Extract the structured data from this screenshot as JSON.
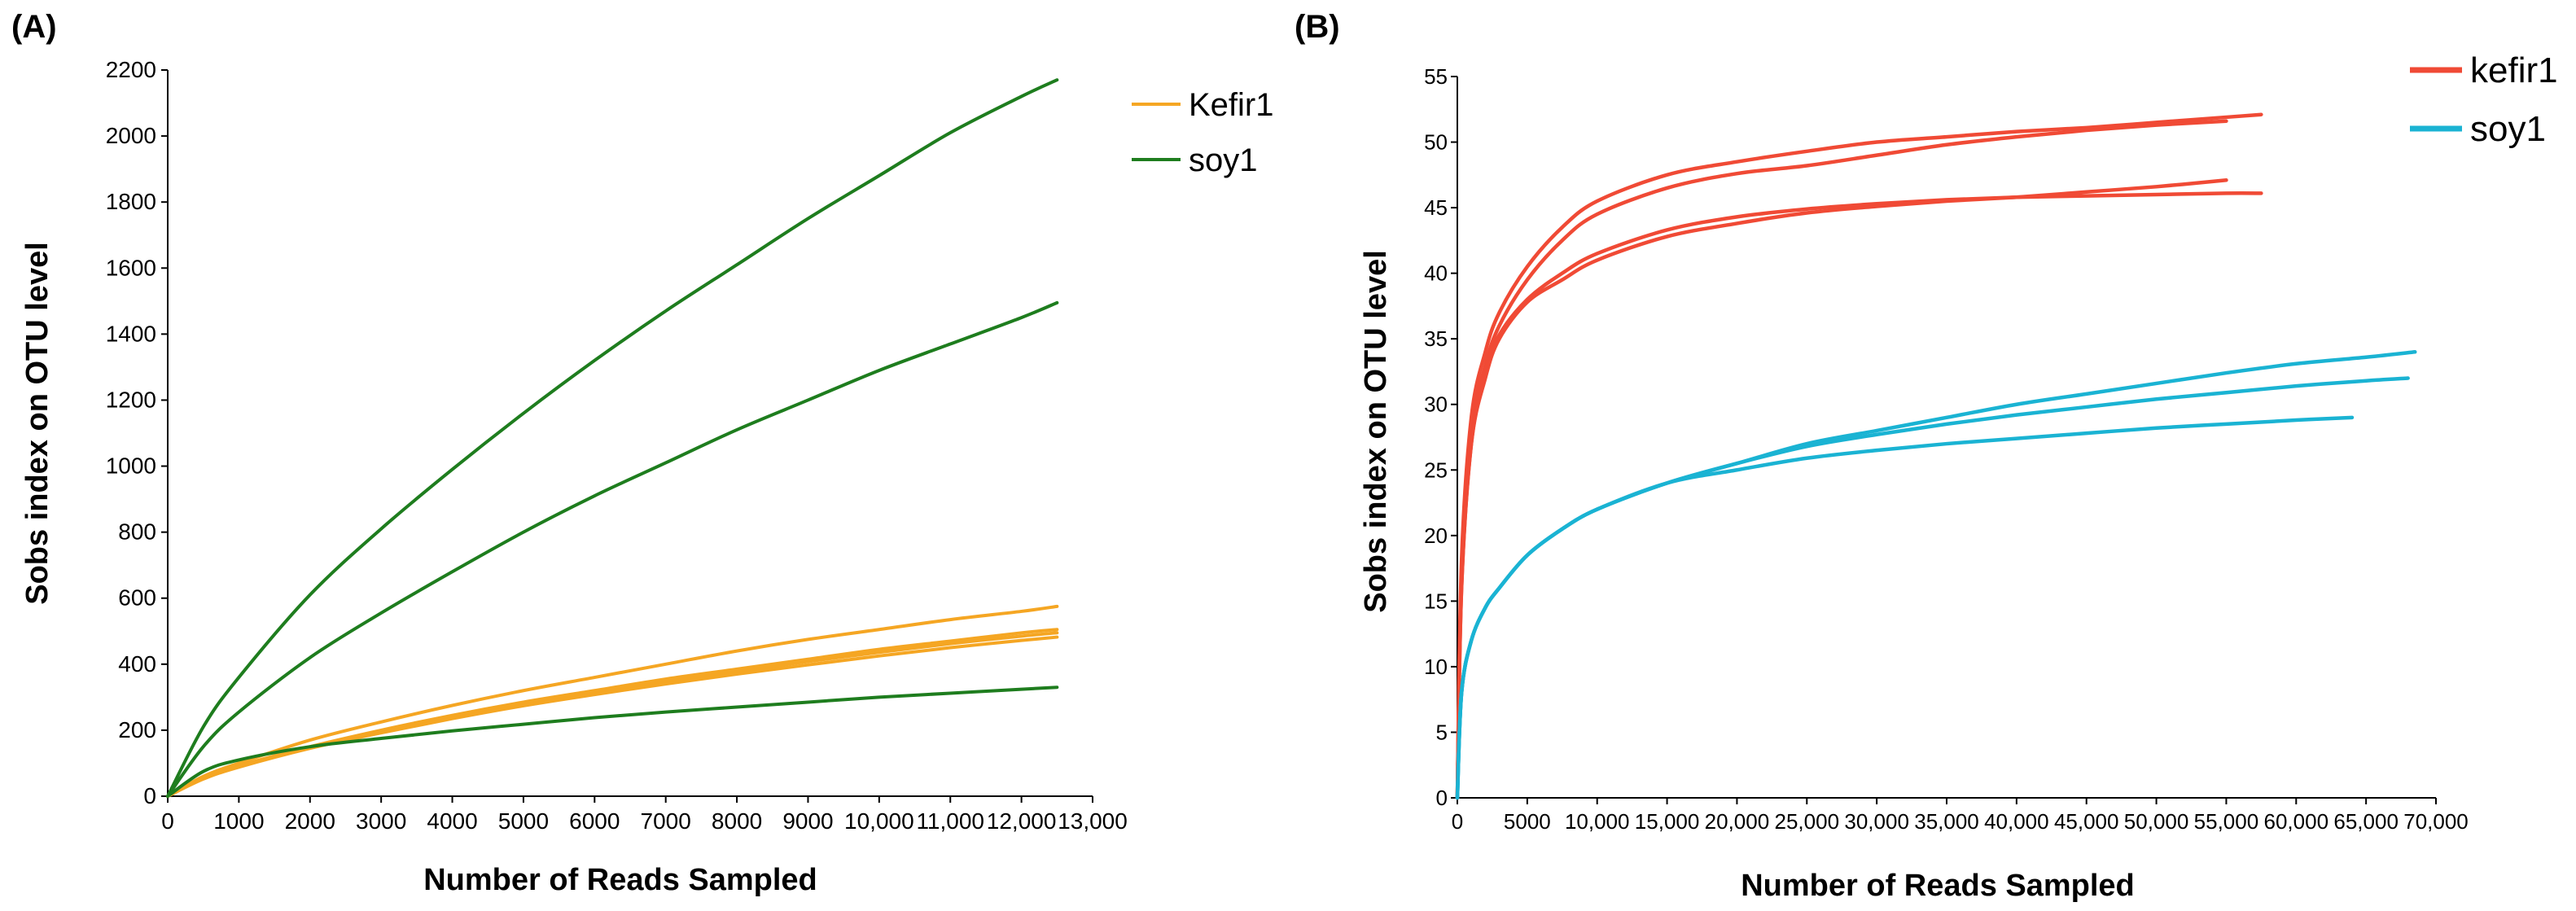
{
  "chart_data": [
    {
      "panel": "(A)",
      "type": "line",
      "xlabel": "Number of Reads Sampled",
      "ylabel": "Sobs index on OTU level",
      "xlim": [
        0,
        13000
      ],
      "ylim": [
        0,
        2200
      ],
      "xticks": [
        0,
        1000,
        2000,
        3000,
        4000,
        5000,
        6000,
        7000,
        8000,
        9000,
        10000,
        11000,
        12000,
        13000
      ],
      "xtick_labels": [
        "0",
        "1000",
        "2000",
        "3000",
        "4000",
        "5000",
        "6000",
        "7000",
        "8000",
        "9000",
        "10,000",
        "11,000",
        "12,000",
        "13,000"
      ],
      "yticks": [
        0,
        200,
        400,
        600,
        800,
        1000,
        1200,
        1400,
        1600,
        1800,
        2000,
        2200
      ],
      "ytick_labels": [
        "0",
        "200",
        "400",
        "600",
        "800",
        "1000",
        "1200",
        "1400",
        "1600",
        "1800",
        "2000",
        "2200"
      ],
      "legend": [
        {
          "label": "Kefir1",
          "color": "#f5a623"
        },
        {
          "label": "soy1",
          "color": "#1e7d1e"
        }
      ],
      "series": [
        {
          "name": "Kefir1",
          "color": "#f5a623",
          "x": [
            0,
            500,
            1000,
            2000,
            3000,
            4000,
            5000,
            6000,
            7000,
            8000,
            9000,
            10000,
            11000,
            12000,
            12500
          ],
          "y": [
            0,
            60,
            100,
            170,
            225,
            275,
            320,
            360,
            400,
            440,
            475,
            505,
            535,
            560,
            575
          ]
        },
        {
          "name": "Kefir1",
          "color": "#f5a623",
          "x": [
            0,
            500,
            1000,
            2000,
            3000,
            4000,
            5000,
            6000,
            7000,
            8000,
            9000,
            10000,
            11000,
            12000,
            12500
          ],
          "y": [
            0,
            55,
            92,
            150,
            200,
            245,
            285,
            320,
            355,
            385,
            415,
            445,
            470,
            495,
            505
          ]
        },
        {
          "name": "Kefir1",
          "color": "#f5a623",
          "x": [
            0,
            500,
            1000,
            2000,
            3000,
            4000,
            5000,
            6000,
            7000,
            8000,
            9000,
            10000,
            11000,
            12000,
            12500
          ],
          "y": [
            0,
            54,
            90,
            148,
            196,
            240,
            280,
            315,
            348,
            378,
            408,
            436,
            462,
            485,
            495
          ]
        },
        {
          "name": "Kefir1",
          "color": "#f5a623",
          "x": [
            0,
            500,
            1000,
            2000,
            3000,
            4000,
            5000,
            6000,
            7000,
            8000,
            9000,
            10000,
            11000,
            12000,
            12500
          ],
          "y": [
            0,
            52,
            88,
            145,
            192,
            235,
            274,
            308,
            340,
            370,
            398,
            425,
            450,
            472,
            482
          ]
        },
        {
          "name": "soy1",
          "color": "#1e7d1e",
          "x": [
            0,
            500,
            1000,
            2000,
            3000,
            4000,
            5000,
            6000,
            7000,
            8000,
            9000,
            10000,
            11000,
            12000,
            12500
          ],
          "y": [
            0,
            210,
            360,
            610,
            810,
            990,
            1160,
            1320,
            1470,
            1610,
            1750,
            1880,
            2010,
            2120,
            2170
          ]
        },
        {
          "name": "soy1",
          "color": "#1e7d1e",
          "x": [
            0,
            500,
            1000,
            2000,
            3000,
            4000,
            5000,
            6000,
            7000,
            8000,
            9000,
            10000,
            11000,
            12000,
            12500
          ],
          "y": [
            0,
            150,
            255,
            420,
            555,
            680,
            800,
            910,
            1010,
            1110,
            1200,
            1290,
            1370,
            1450,
            1495
          ]
        },
        {
          "name": "soy1",
          "color": "#1e7d1e",
          "x": [
            0,
            500,
            1000,
            2000,
            3000,
            4000,
            5000,
            6000,
            7000,
            8000,
            9000,
            10000,
            11000,
            12000,
            12500
          ],
          "y": [
            0,
            75,
            110,
            150,
            175,
            198,
            218,
            238,
            255,
            270,
            285,
            300,
            312,
            324,
            330
          ]
        }
      ]
    },
    {
      "panel": "(B)",
      "type": "line",
      "xlabel": "Number of Reads Sampled",
      "ylabel": "Sobs index on OTU level",
      "xlim": [
        0,
        70000
      ],
      "ylim": [
        0,
        55
      ],
      "xticks": [
        0,
        5000,
        10000,
        15000,
        20000,
        25000,
        30000,
        35000,
        40000,
        45000,
        50000,
        55000,
        60000,
        65000,
        70000
      ],
      "xtick_labels": [
        "0",
        "5000",
        "10,000",
        "15,000",
        "20,000",
        "25,000",
        "30,000",
        "35,000",
        "40,000",
        "45,000",
        "50,000",
        "55,000",
        "60,000",
        "65,000",
        "70,000"
      ],
      "yticks": [
        0,
        5,
        10,
        15,
        20,
        25,
        30,
        35,
        40,
        45,
        50,
        55
      ],
      "ytick_labels": [
        "0",
        "5",
        "10",
        "15",
        "20",
        "25",
        "30",
        "35",
        "40",
        "45",
        "50",
        "55"
      ],
      "legend": [
        {
          "label": "kefir1",
          "color": "#f04a35"
        },
        {
          "label": "soy1",
          "color": "#1ab3d3"
        }
      ],
      "series": [
        {
          "name": "kefir1",
          "color": "#f04a35",
          "x": [
            0,
            300,
            1000,
            2000,
            3000,
            5000,
            7500,
            10000,
            15000,
            20000,
            25000,
            30000,
            35000,
            40000,
            45000,
            50000,
            55000,
            57500
          ],
          "y": [
            0,
            18,
            29,
            34,
            37,
            40.5,
            43.5,
            45.5,
            47.5,
            48.5,
            49.3,
            50,
            50.4,
            50.8,
            51.1,
            51.5,
            51.9,
            52.1
          ]
        },
        {
          "name": "kefir1",
          "color": "#f04a35",
          "x": [
            0,
            300,
            1000,
            2000,
            3000,
            5000,
            7500,
            10000,
            15000,
            20000,
            25000,
            30000,
            35000,
            40000,
            45000,
            50000,
            55000
          ],
          "y": [
            0,
            17,
            28,
            33,
            36,
            39.5,
            42.5,
            44.5,
            46.5,
            47.6,
            48.2,
            49,
            49.8,
            50.4,
            50.9,
            51.3,
            51.6
          ]
        },
        {
          "name": "kefir1",
          "color": "#f04a35",
          "x": [
            0,
            300,
            1000,
            2000,
            3000,
            5000,
            7500,
            10000,
            15000,
            20000,
            25000,
            30000,
            35000,
            40000,
            45000,
            50000,
            55000
          ],
          "y": [
            0,
            16,
            27,
            32,
            35,
            37.8,
            39.5,
            41,
            42.8,
            43.8,
            44.6,
            45.1,
            45.5,
            45.8,
            46.2,
            46.6,
            47.1
          ]
        },
        {
          "name": "kefir1",
          "color": "#f04a35",
          "x": [
            0,
            300,
            1000,
            2000,
            3000,
            5000,
            7500,
            10000,
            15000,
            20000,
            25000,
            30000,
            35000,
            40000,
            45000,
            50000,
            55000,
            57500
          ],
          "y": [
            0,
            16,
            27,
            32.5,
            35.3,
            38,
            40,
            41.5,
            43.3,
            44.3,
            44.9,
            45.3,
            45.6,
            45.8,
            45.9,
            46,
            46.1,
            46.1
          ]
        },
        {
          "name": "soy1",
          "color": "#1ab3d3",
          "x": [
            0,
            300,
            1000,
            2000,
            3000,
            5000,
            7500,
            10000,
            15000,
            20000,
            25000,
            30000,
            35000,
            40000,
            45000,
            50000,
            55000,
            60000,
            65000,
            68500
          ],
          "y": [
            0,
            8,
            12,
            14.5,
            16,
            18.5,
            20.5,
            22,
            24,
            25.5,
            27,
            28,
            29,
            30,
            30.8,
            31.6,
            32.4,
            33.1,
            33.6,
            34
          ]
        },
        {
          "name": "soy1",
          "color": "#1ab3d3",
          "x": [
            0,
            300,
            1000,
            2000,
            3000,
            5000,
            7500,
            10000,
            15000,
            20000,
            25000,
            30000,
            35000,
            40000,
            45000,
            50000,
            55000,
            60000,
            65000,
            68000
          ],
          "y": [
            0,
            8,
            12,
            14.5,
            16,
            18.5,
            20.5,
            22,
            24,
            25.5,
            26.8,
            27.7,
            28.5,
            29.2,
            29.8,
            30.4,
            30.9,
            31.4,
            31.8,
            32
          ]
        },
        {
          "name": "soy1",
          "color": "#1ab3d3",
          "x": [
            0,
            300,
            1000,
            2000,
            3000,
            5000,
            7500,
            10000,
            15000,
            20000,
            25000,
            30000,
            35000,
            40000,
            45000,
            50000,
            55000,
            60000,
            64000
          ],
          "y": [
            0,
            8,
            12,
            14.5,
            16,
            18.5,
            20.5,
            22,
            24,
            25,
            25.9,
            26.5,
            27,
            27.4,
            27.8,
            28.2,
            28.5,
            28.8,
            29
          ]
        }
      ]
    }
  ]
}
